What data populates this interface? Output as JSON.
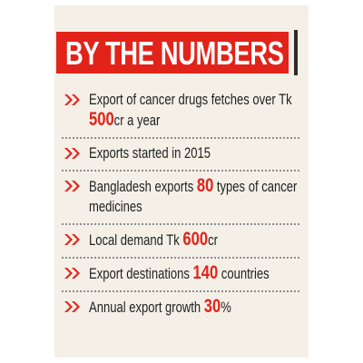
{
  "header": {
    "title": "BY THE NUMBERS"
  },
  "items": [
    {
      "parts": [
        "Export of cancer drugs fetches over Tk ",
        "500",
        "cr a year"
      ]
    },
    {
      "parts": [
        "Exports started in 2015"
      ]
    },
    {
      "parts": [
        "Bangladesh exports ",
        "80",
        " types of cancer medicines"
      ]
    },
    {
      "parts": [
        "Local demand Tk ",
        "600",
        "cr"
      ]
    },
    {
      "parts": [
        "Export destinations ",
        "140",
        " countries"
      ]
    },
    {
      "parts": [
        "Annual export growth ",
        "30",
        "%"
      ]
    }
  ]
}
